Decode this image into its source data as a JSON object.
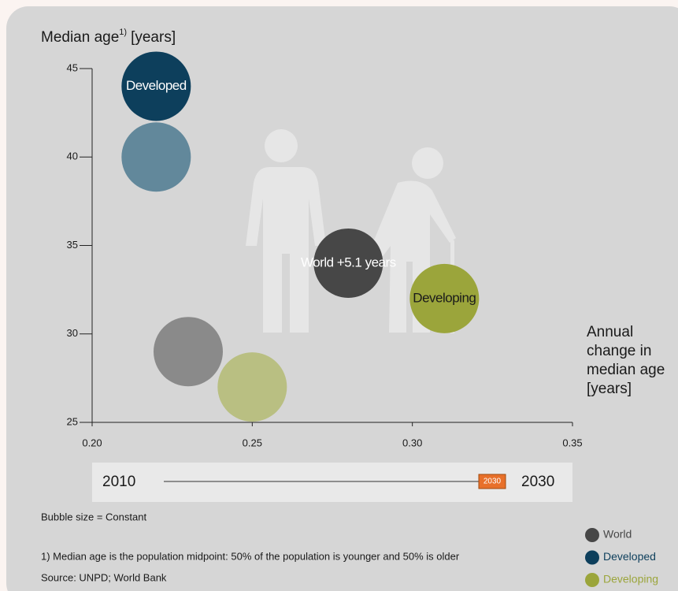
{
  "chart_data": {
    "type": "bubble",
    "y_label": "Median age",
    "y_label_note": "1)",
    "y_label_unit": "[years]",
    "x_label": "Annual change in median age [years]",
    "xlim": [
      0.2,
      0.35
    ],
    "xticks": [
      {
        "value": 0.2,
        "label": "0.20"
      },
      0.25,
      {
        "value": 0.3,
        "label": "0.30"
      },
      0.35
    ],
    "ylim": [
      25,
      45
    ],
    "yticks": [
      25,
      30,
      35,
      40,
      45
    ],
    "series": [
      {
        "name": "World",
        "color": "#474747",
        "faded_color": "#8a8a8a",
        "label_color": "#ffffff",
        "x": [
          0.23,
          0.28
        ],
        "values": [
          29,
          34
        ],
        "point_labels": [
          null,
          "World +5.1 years"
        ]
      },
      {
        "name": "Developed",
        "color": "#0d3f5c",
        "faded_color": "#62889b",
        "label_color": "#ffffff",
        "x": [
          0.22,
          0.22
        ],
        "values": [
          40,
          44
        ],
        "point_labels": [
          null,
          "Developed"
        ]
      },
      {
        "name": "Developing",
        "color": "#9ba53b",
        "faded_color": "#b9bf82",
        "label_color": "#1a1a1a",
        "x": [
          0.25,
          0.31
        ],
        "values": [
          27,
          32
        ],
        "point_labels": [
          null,
          "Developing"
        ]
      }
    ],
    "slider": {
      "start": "2010",
      "end": "2030",
      "current": "2030"
    },
    "notes": [
      "Bubble size = Constant",
      "1) Median age is the population midpoint: 50% of the population is younger and 50% is older",
      "Source: UNPD; World Bank"
    ]
  }
}
